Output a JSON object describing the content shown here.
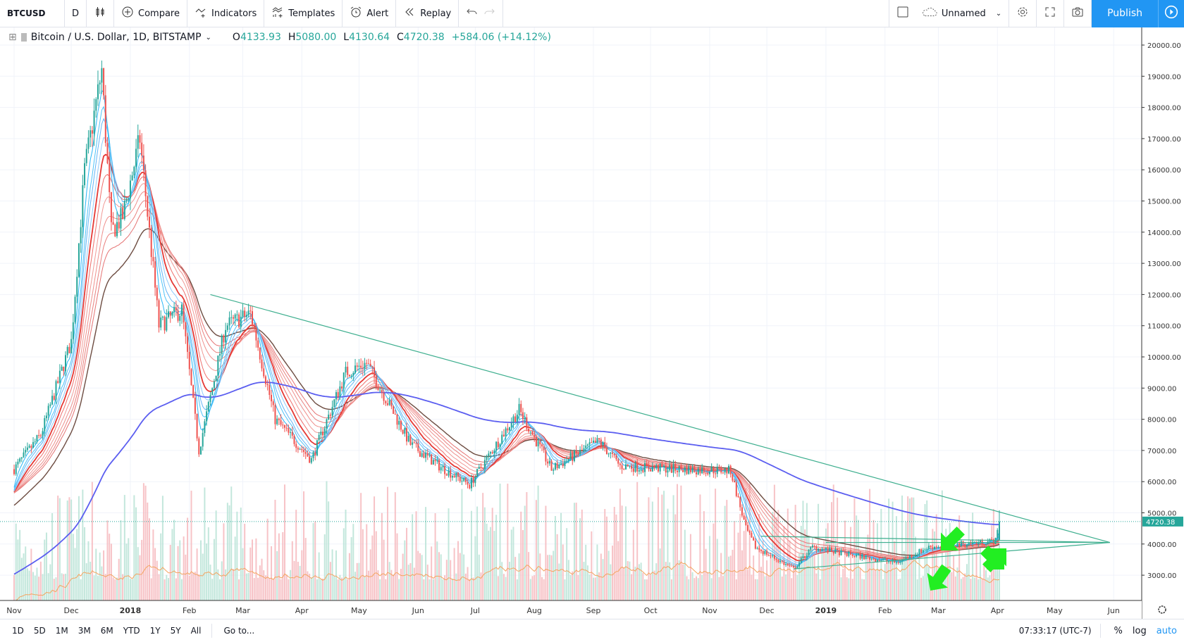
{
  "toolbar": {
    "symbol": "BTCUSD",
    "interval": "D",
    "compare": "Compare",
    "indicators": "Indicators",
    "templates": "Templates",
    "alert": "Alert",
    "replay": "Replay",
    "layout_name": "Unnamed",
    "publish": "Publish"
  },
  "legend": {
    "title": "Bitcoin / U.S. Dollar, 1D, BITSTAMP",
    "o_label": "O",
    "o": "4133.93",
    "h_label": "H",
    "h": "5080.00",
    "l_label": "L",
    "l": "4130.64",
    "c_label": "C",
    "c": "4720.38",
    "change": "+584.06 (+14.12%)"
  },
  "bottombar": {
    "ranges": [
      "1D",
      "5D",
      "1M",
      "3M",
      "6M",
      "YTD",
      "1Y",
      "5Y",
      "All"
    ],
    "goto": "Go to...",
    "clock": "07:33:17 (UTC-7)",
    "percent": "%",
    "log": "log",
    "auto": "auto"
  },
  "colors": {
    "up": "#26a69a",
    "down": "#ef5350",
    "ma200": "#5b5ef0",
    "trendline": "#3dae8e",
    "arrow": "#22ee22",
    "accent": "#2196f3"
  },
  "chart_data": {
    "type": "candlestick",
    "symbol": "BTCUSD",
    "timeframe": "1D",
    "price_ticks": [
      3000,
      4000,
      5000,
      6000,
      7000,
      8000,
      9000,
      10000,
      11000,
      12000,
      13000,
      14000,
      15000,
      16000,
      17000,
      18000,
      19000,
      20000
    ],
    "price_tick_labels": [
      "3000.00",
      "4000.00",
      "5000.00",
      "6000.00",
      "7000.00",
      "8000.00",
      "9000.00",
      "10000.00",
      "11000.00",
      "12000.00",
      "13000.00",
      "14000.00",
      "15000.00",
      "16000.00",
      "17000.00",
      "18000.00",
      "19000.00",
      "20000.00"
    ],
    "time_ticks": [
      {
        "date": "2017-11-01",
        "label": "Nov"
      },
      {
        "date": "2017-12-01",
        "label": "Dec"
      },
      {
        "date": "2018-01-01",
        "label": "2018"
      },
      {
        "date": "2018-02-01",
        "label": "Feb"
      },
      {
        "date": "2018-03-01",
        "label": "Mar"
      },
      {
        "date": "2018-04-01",
        "label": "Apr"
      },
      {
        "date": "2018-05-01",
        "label": "May"
      },
      {
        "date": "2018-06-01",
        "label": "Jun"
      },
      {
        "date": "2018-07-01",
        "label": "Jul"
      },
      {
        "date": "2018-08-01",
        "label": "Aug"
      },
      {
        "date": "2018-09-01",
        "label": "Sep"
      },
      {
        "date": "2018-10-01",
        "label": "Oct"
      },
      {
        "date": "2018-11-01",
        "label": "Nov"
      },
      {
        "date": "2018-12-01",
        "label": "Dec"
      },
      {
        "date": "2019-01-01",
        "label": "2019"
      },
      {
        "date": "2019-02-01",
        "label": "Feb"
      },
      {
        "date": "2019-03-01",
        "label": "Mar"
      },
      {
        "date": "2019-04-01",
        "label": "Apr"
      },
      {
        "date": "2019-05-01",
        "label": "May"
      },
      {
        "date": "2019-06-01",
        "label": "Jun"
      }
    ],
    "approx_closes": [
      [
        "2017-11-01",
        6400
      ],
      [
        "2017-11-15",
        7500
      ],
      [
        "2017-12-01",
        10500
      ],
      [
        "2017-12-08",
        16000
      ],
      [
        "2017-12-17",
        19200
      ],
      [
        "2017-12-22",
        14000
      ],
      [
        "2017-12-28",
        14500
      ],
      [
        "2018-01-06",
        17000
      ],
      [
        "2018-01-16",
        11000
      ],
      [
        "2018-01-28",
        11500
      ],
      [
        "2018-02-06",
        7000
      ],
      [
        "2018-02-20",
        11000
      ],
      [
        "2018-03-05",
        11400
      ],
      [
        "2018-03-18",
        8000
      ],
      [
        "2018-04-06",
        6700
      ],
      [
        "2018-04-24",
        9500
      ],
      [
        "2018-05-05",
        9800
      ],
      [
        "2018-05-28",
        7200
      ],
      [
        "2018-06-12",
        6500
      ],
      [
        "2018-06-28",
        5900
      ],
      [
        "2018-07-24",
        8300
      ],
      [
        "2018-08-10",
        6400
      ],
      [
        "2018-09-04",
        7300
      ],
      [
        "2018-09-15",
        6500
      ],
      [
        "2018-10-15",
        6400
      ],
      [
        "2018-11-12",
        6350
      ],
      [
        "2018-11-20",
        4500
      ],
      [
        "2018-11-25",
        3900
      ],
      [
        "2018-12-15",
        3200
      ],
      [
        "2018-12-25",
        3900
      ],
      [
        "2019-01-10",
        3700
      ],
      [
        "2019-02-07",
        3400
      ],
      [
        "2019-02-24",
        3900
      ],
      [
        "2019-03-31",
        4100
      ],
      [
        "2019-04-02",
        4720.38
      ]
    ],
    "last_price": 4720.38,
    "last_price_label": "4720.38",
    "indicators": [
      "EMA ribbon",
      "SMA 200",
      "Volume"
    ],
    "trendlines": [
      {
        "from": [
          "2018-02-12",
          12000
        ],
        "to": [
          "2019-05-30",
          4050
        ]
      },
      {
        "from": [
          "2018-12-15",
          3200
        ],
        "to": [
          "2019-05-30",
          4050
        ]
      },
      {
        "from": [
          "2018-11-28",
          4250
        ],
        "to": [
          "2019-05-30",
          4050
        ]
      },
      {
        "from": [
          "2019-01-01",
          4050
        ],
        "to": [
          "2019-05-30",
          4050
        ]
      }
    ],
    "ylim": [
      2200,
      20600
    ],
    "grid": true
  }
}
